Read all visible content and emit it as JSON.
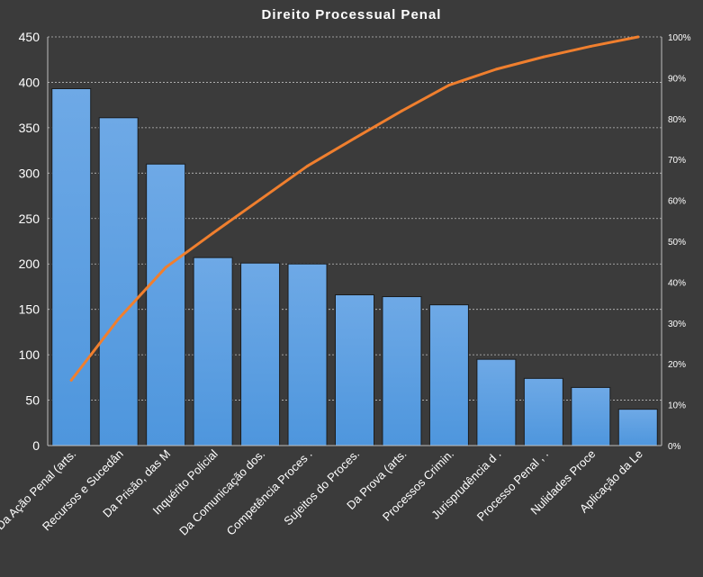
{
  "chart_data": {
    "type": "bar",
    "title": "Direito  Processual  Penal",
    "categories": [
      "Da Ação Penal (arts.",
      "Recursos e Sucedân",
      "Da Prisão, das M",
      "Inquérito Policial",
      "Da Comunicação dos.",
      "Competência Proces .",
      "Sujeitos do Proces.",
      "Da Prova (arts.",
      "Processos Crimin.",
      "Jurisprudência d .",
      "Processo Penal , .",
      "Nulidades Proce",
      "Aplicação da Le"
    ],
    "series": [
      {
        "type": "bar",
        "values": [
          393,
          361,
          310,
          207,
          201,
          200,
          166,
          164,
          155,
          95,
          74,
          64,
          40
        ]
      },
      {
        "type": "line",
        "axis": "right",
        "values": [
          0.16,
          0.31,
          0.436,
          0.52,
          0.602,
          0.684,
          0.752,
          0.819,
          0.882,
          0.921,
          0.951,
          0.977,
          1.0
        ]
      }
    ],
    "ylim": [
      0,
      450
    ],
    "yticks": [
      "0",
      "50",
      "100",
      "150",
      "200",
      "250",
      "300",
      "350",
      "400",
      "450"
    ],
    "y2lim": [
      0,
      1
    ],
    "y2ticks": [
      "0%",
      "10%",
      "20%",
      "30%",
      "40%",
      "50%",
      "60%",
      "70%",
      "80%",
      "90%",
      "100%"
    ],
    "grid": true,
    "colors": {
      "background": "#3b3b3b",
      "bar": "#4e96dd",
      "bar_top": "#6ea9e6",
      "line": "#f07f2e",
      "grid": "#bfbfbf",
      "text": "#ffffff"
    }
  }
}
